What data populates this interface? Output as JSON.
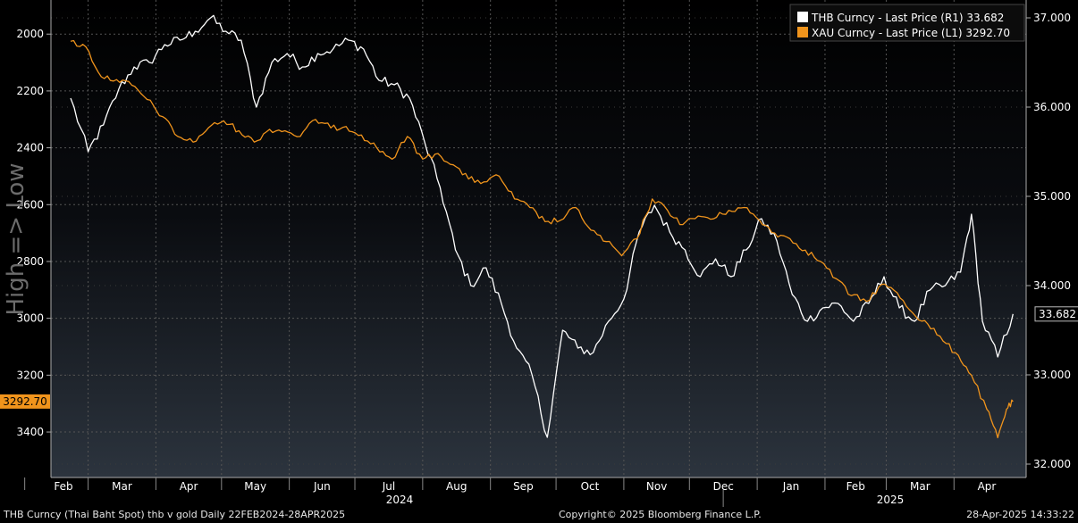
{
  "colors": {
    "thb": "#ffffff",
    "xau": "#f0941c",
    "grid": "#555555",
    "axis_text": "#ffffff",
    "legend_bg": "#0c0c0c",
    "watermark": "#6c6c6c"
  },
  "watermark_text": "High => Low",
  "footer": {
    "left": "THB Curncy (Thai Baht Spot) thb v gold  Daily 22FEB2024-28APR2025",
    "center": "Copyright© 2025 Bloomberg Finance L.P.",
    "right": "28-Apr-2025 14:33:22"
  },
  "chart_data": {
    "type": "line",
    "legend": {
      "placement": "top-right",
      "entries": [
        "THB Curncy - Last Price (R1) 33.682",
        "XAU Curncy - Last Price (L1) 3292.70"
      ]
    },
    "x_month_labels": [
      "Feb",
      "Mar",
      "Apr",
      "May",
      "Jun",
      "Jul",
      "Aug",
      "Sep",
      "Oct",
      "Nov",
      "Dec",
      "Jan",
      "Feb",
      "Mar",
      "Apr"
    ],
    "x_year_labels": [
      "2024",
      "2025"
    ],
    "left_axis": {
      "inverted": true,
      "range": [
        1880,
        3560
      ],
      "ticks": [
        2000,
        2200,
        2400,
        2600,
        2800,
        3000,
        3200,
        3400
      ],
      "last_value_label": "3292.70",
      "last_value": 3292.7
    },
    "right_axis": {
      "range": [
        31.85,
        37.2
      ],
      "ticks": [
        "37.000",
        "36.000",
        "35.000",
        "34.000",
        "33.000",
        "32.000"
      ],
      "last_value_label": "33.682",
      "last_value": 33.682
    },
    "series": [
      {
        "name": "THB Curncy - Last Price (R1)",
        "axis": "right",
        "points": [
          [
            "2024-02-22",
            36.1
          ],
          [
            "2024-03-01",
            35.5
          ],
          [
            "2024-03-08",
            35.8
          ],
          [
            "2024-03-15",
            36.2
          ],
          [
            "2024-03-22",
            36.45
          ],
          [
            "2024-03-29",
            36.5
          ],
          [
            "2024-04-05",
            36.7
          ],
          [
            "2024-04-12",
            36.75
          ],
          [
            "2024-04-19",
            36.85
          ],
          [
            "2024-04-26",
            37.0
          ],
          [
            "2024-05-03",
            36.85
          ],
          [
            "2024-05-10",
            36.75
          ],
          [
            "2024-05-17",
            36.0
          ],
          [
            "2024-05-24",
            36.5
          ],
          [
            "2024-05-31",
            36.6
          ],
          [
            "2024-06-07",
            36.45
          ],
          [
            "2024-06-14",
            36.6
          ],
          [
            "2024-06-21",
            36.65
          ],
          [
            "2024-06-28",
            36.75
          ],
          [
            "2024-07-05",
            36.65
          ],
          [
            "2024-07-12",
            36.3
          ],
          [
            "2024-07-19",
            36.25
          ],
          [
            "2024-07-26",
            36.1
          ],
          [
            "2024-08-02",
            35.6
          ],
          [
            "2024-08-09",
            35.1
          ],
          [
            "2024-08-16",
            34.4
          ],
          [
            "2024-08-23",
            34.0
          ],
          [
            "2024-08-30",
            34.2
          ],
          [
            "2024-09-06",
            33.8
          ],
          [
            "2024-09-13",
            33.3
          ],
          [
            "2024-09-20",
            33.0
          ],
          [
            "2024-09-27",
            32.3
          ],
          [
            "2024-10-04",
            33.5
          ],
          [
            "2024-10-11",
            33.3
          ],
          [
            "2024-10-18",
            33.25
          ],
          [
            "2024-10-25",
            33.6
          ],
          [
            "2024-11-01",
            33.85
          ],
          [
            "2024-11-08",
            34.6
          ],
          [
            "2024-11-15",
            34.9
          ],
          [
            "2024-11-22",
            34.6
          ],
          [
            "2024-11-29",
            34.4
          ],
          [
            "2024-12-06",
            34.1
          ],
          [
            "2024-12-13",
            34.3
          ],
          [
            "2024-12-20",
            34.1
          ],
          [
            "2024-12-27",
            34.4
          ],
          [
            "2025-01-03",
            34.75
          ],
          [
            "2025-01-10",
            34.5
          ],
          [
            "2025-01-17",
            33.9
          ],
          [
            "2025-01-24",
            33.6
          ],
          [
            "2025-01-31",
            33.75
          ],
          [
            "2025-02-07",
            33.8
          ],
          [
            "2025-02-14",
            33.6
          ],
          [
            "2025-02-21",
            33.8
          ],
          [
            "2025-02-28",
            34.1
          ],
          [
            "2025-03-07",
            33.75
          ],
          [
            "2025-03-14",
            33.6
          ],
          [
            "2025-03-21",
            33.95
          ],
          [
            "2025-03-28",
            34.0
          ],
          [
            "2025-04-04",
            34.15
          ],
          [
            "2025-04-09",
            34.8
          ],
          [
            "2025-04-14",
            33.6
          ],
          [
            "2025-04-21",
            33.2
          ],
          [
            "2025-04-28",
            33.682
          ]
        ]
      },
      {
        "name": "XAU Curncy - Last Price (L1)",
        "axis": "left",
        "points": [
          [
            "2024-02-22",
            2025
          ],
          [
            "2024-02-29",
            2045
          ],
          [
            "2024-03-07",
            2150
          ],
          [
            "2024-03-14",
            2160
          ],
          [
            "2024-03-21",
            2180
          ],
          [
            "2024-03-28",
            2230
          ],
          [
            "2024-04-04",
            2290
          ],
          [
            "2024-04-11",
            2360
          ],
          [
            "2024-04-18",
            2380
          ],
          [
            "2024-04-25",
            2330
          ],
          [
            "2024-05-02",
            2305
          ],
          [
            "2024-05-09",
            2340
          ],
          [
            "2024-05-16",
            2380
          ],
          [
            "2024-05-23",
            2335
          ],
          [
            "2024-05-30",
            2340
          ],
          [
            "2024-06-06",
            2360
          ],
          [
            "2024-06-13",
            2300
          ],
          [
            "2024-06-20",
            2330
          ],
          [
            "2024-06-27",
            2325
          ],
          [
            "2024-07-04",
            2355
          ],
          [
            "2024-07-11",
            2400
          ],
          [
            "2024-07-18",
            2440
          ],
          [
            "2024-07-25",
            2360
          ],
          [
            "2024-08-01",
            2440
          ],
          [
            "2024-08-08",
            2420
          ],
          [
            "2024-08-15",
            2460
          ],
          [
            "2024-08-22",
            2510
          ],
          [
            "2024-08-29",
            2520
          ],
          [
            "2024-09-05",
            2500
          ],
          [
            "2024-09-12",
            2580
          ],
          [
            "2024-09-19",
            2610
          ],
          [
            "2024-09-26",
            2660
          ],
          [
            "2024-10-03",
            2655
          ],
          [
            "2024-10-10",
            2610
          ],
          [
            "2024-10-17",
            2690
          ],
          [
            "2024-10-24",
            2730
          ],
          [
            "2024-10-31",
            2780
          ],
          [
            "2024-11-07",
            2720
          ],
          [
            "2024-11-14",
            2580
          ],
          [
            "2024-11-21",
            2620
          ],
          [
            "2024-11-28",
            2670
          ],
          [
            "2024-12-05",
            2640
          ],
          [
            "2024-12-12",
            2650
          ],
          [
            "2024-12-19",
            2620
          ],
          [
            "2024-12-26",
            2610
          ],
          [
            "2025-01-02",
            2655
          ],
          [
            "2025-01-09",
            2700
          ],
          [
            "2025-01-16",
            2720
          ],
          [
            "2025-01-23",
            2760
          ],
          [
            "2025-01-30",
            2800
          ],
          [
            "2025-02-06",
            2860
          ],
          [
            "2025-02-13",
            2920
          ],
          [
            "2025-02-20",
            2940
          ],
          [
            "2025-02-27",
            2880
          ],
          [
            "2025-03-06",
            2910
          ],
          [
            "2025-03-13",
            2980
          ],
          [
            "2025-03-20",
            3020
          ],
          [
            "2025-03-27",
            3080
          ],
          [
            "2025-04-03",
            3130
          ],
          [
            "2025-04-09",
            3200
          ],
          [
            "2025-04-16",
            3320
          ],
          [
            "2025-04-21",
            3420
          ],
          [
            "2025-04-25",
            3320
          ],
          [
            "2025-04-28",
            3292.7
          ]
        ]
      }
    ]
  }
}
